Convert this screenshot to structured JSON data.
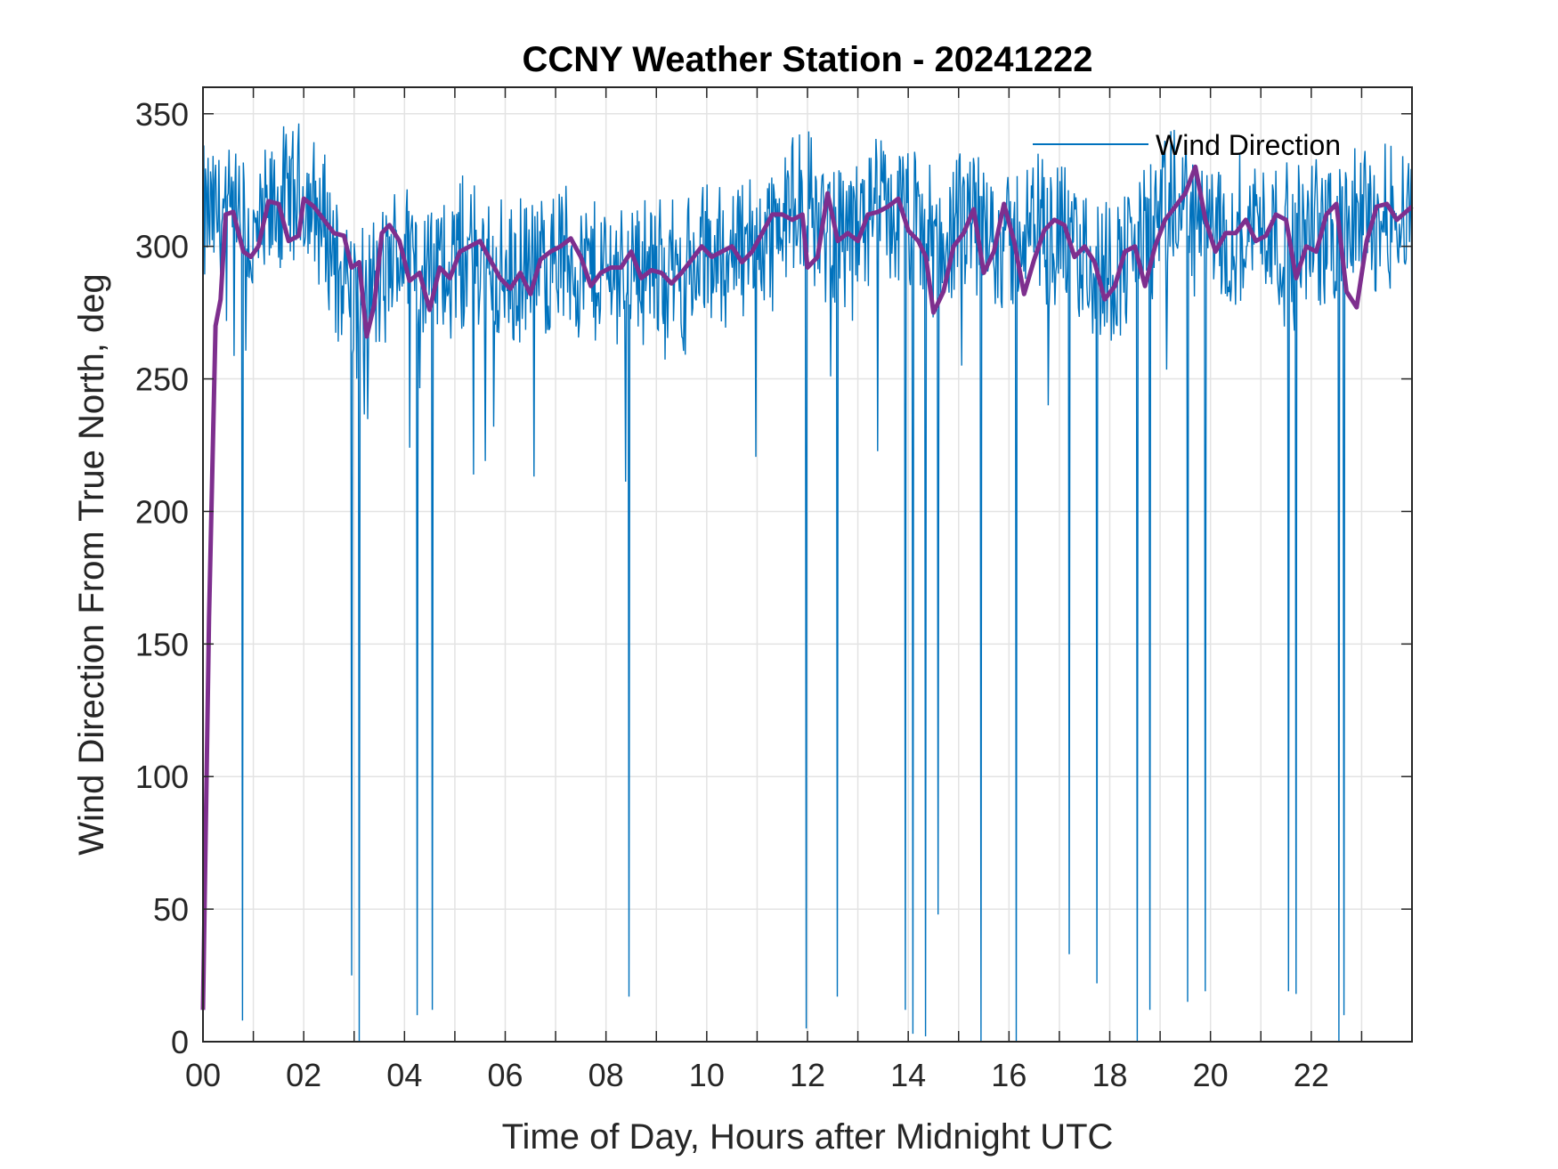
{
  "chart_data": {
    "type": "line",
    "title": "CCNY Weather Station - 20241222",
    "xlabel": "Time of Day, Hours after Midnight UTC",
    "ylabel": "Wind Direction From True North, deg",
    "xlim": [
      0,
      24
    ],
    "ylim": [
      0,
      360
    ],
    "x_ticks": [
      0,
      2,
      4,
      6,
      8,
      10,
      12,
      14,
      16,
      18,
      20,
      22
    ],
    "x_tick_labels": [
      "00",
      "02",
      "04",
      "06",
      "08",
      "10",
      "12",
      "14",
      "16",
      "18",
      "20",
      "22"
    ],
    "y_ticks": [
      0,
      50,
      100,
      150,
      200,
      250,
      300,
      350
    ],
    "y_tick_labels": [
      "0",
      "50",
      "100",
      "150",
      "200",
      "250",
      "300",
      "350"
    ],
    "grid": true,
    "legend_position": "top-right",
    "series": [
      {
        "name": "Wind Direction",
        "color": "#0072BD",
        "style": "thin-noisy",
        "x": [
          0.0,
          0.5,
          1.0,
          1.5,
          2.0,
          2.5,
          3.0,
          3.5,
          4.0,
          4.5,
          5.0,
          5.5,
          6.0,
          6.5,
          7.0,
          7.5,
          8.0,
          8.5,
          9.0,
          9.5,
          10.0,
          10.5,
          11.0,
          11.5,
          12.0,
          12.5,
          13.0,
          13.5,
          14.0,
          14.5,
          15.0,
          15.5,
          16.0,
          16.5,
          17.0,
          17.5,
          18.0,
          18.5,
          19.0,
          19.5,
          20.0,
          20.5,
          21.0,
          21.5,
          22.0,
          22.5,
          23.0,
          23.5,
          24.0
        ],
        "values": [
          310,
          312,
          300,
          315,
          318,
          305,
          280,
          285,
          300,
          290,
          295,
          298,
          285,
          290,
          298,
          292,
          290,
          295,
          290,
          288,
          295,
          298,
          302,
          310,
          315,
          305,
          308,
          312,
          310,
          300,
          305,
          310,
          300,
          308,
          305,
          295,
          290,
          300,
          310,
          315,
          305,
          305,
          310,
          300,
          305,
          305,
          310,
          312,
          315
        ],
        "noise_amplitude": 28,
        "spike_x": [
          0.78,
          2.95,
          3.1,
          4.25,
          4.55,
          8.45,
          11.98,
          12.6,
          13.95,
          14.1,
          14.35,
          14.6,
          15.45,
          16.15,
          17.2,
          17.75,
          18.55,
          18.8,
          19.55,
          19.9,
          21.55,
          21.7,
          22.55,
          22.65
        ],
        "spike_y": [
          8,
          25,
          0,
          10,
          12,
          17,
          5,
          17,
          12,
          3,
          2,
          48,
          0,
          0,
          33,
          22,
          0,
          12,
          15,
          19,
          19,
          18,
          0,
          10
        ]
      },
      {
        "name": "",
        "color": "#7E2F8E",
        "style": "thick-average",
        "x": [
          0.0,
          0.12,
          0.25,
          0.35,
          0.45,
          0.6,
          0.8,
          0.95,
          1.1,
          1.3,
          1.5,
          1.7,
          1.9,
          2.0,
          2.2,
          2.4,
          2.6,
          2.8,
          2.95,
          3.1,
          3.25,
          3.4,
          3.55,
          3.7,
          3.9,
          4.1,
          4.3,
          4.5,
          4.7,
          4.9,
          5.1,
          5.3,
          5.5,
          5.7,
          5.9,
          6.1,
          6.3,
          6.5,
          6.7,
          6.9,
          7.1,
          7.3,
          7.5,
          7.7,
          7.9,
          8.1,
          8.3,
          8.5,
          8.7,
          8.9,
          9.1,
          9.3,
          9.5,
          9.7,
          9.9,
          10.1,
          10.3,
          10.5,
          10.7,
          10.9,
          11.1,
          11.3,
          11.5,
          11.7,
          11.9,
          12.0,
          12.2,
          12.4,
          12.6,
          12.8,
          13.0,
          13.2,
          13.4,
          13.6,
          13.8,
          14.0,
          14.2,
          14.35,
          14.5,
          14.7,
          14.9,
          15.1,
          15.3,
          15.5,
          15.7,
          15.9,
          16.1,
          16.3,
          16.5,
          16.7,
          16.9,
          17.1,
          17.3,
          17.5,
          17.7,
          17.9,
          18.1,
          18.3,
          18.5,
          18.7,
          18.9,
          19.1,
          19.3,
          19.5,
          19.7,
          19.9,
          20.1,
          20.3,
          20.5,
          20.7,
          20.9,
          21.1,
          21.3,
          21.5,
          21.7,
          21.9,
          22.1,
          22.3,
          22.5,
          22.7,
          22.9,
          23.1,
          23.3,
          23.5,
          23.7,
          24.0
        ],
        "values": [
          12,
          160,
          270,
          280,
          312,
          313,
          298,
          296,
          300,
          317,
          316,
          302,
          304,
          318,
          315,
          310,
          305,
          304,
          292,
          294,
          266,
          278,
          305,
          308,
          302,
          287,
          290,
          276,
          292,
          288,
          298,
          300,
          302,
          295,
          288,
          284,
          290,
          282,
          295,
          298,
          300,
          303,
          296,
          285,
          290,
          292,
          292,
          298,
          288,
          291,
          290,
          286,
          290,
          295,
          300,
          296,
          298,
          300,
          294,
          298,
          305,
          312,
          312,
          310,
          312,
          292,
          296,
          320,
          302,
          305,
          302,
          312,
          313,
          315,
          318,
          306,
          302,
          296,
          275,
          283,
          300,
          305,
          314,
          290,
          298,
          316,
          302,
          282,
          295,
          306,
          310,
          308,
          296,
          300,
          294,
          280,
          285,
          298,
          300,
          285,
          300,
          310,
          315,
          320,
          330,
          310,
          298,
          305,
          305,
          310,
          302,
          304,
          312,
          310,
          288,
          300,
          298,
          312,
          316,
          283,
          277,
          302,
          315,
          316,
          310,
          315
        ],
        "smooth_window": 15
      }
    ]
  }
}
